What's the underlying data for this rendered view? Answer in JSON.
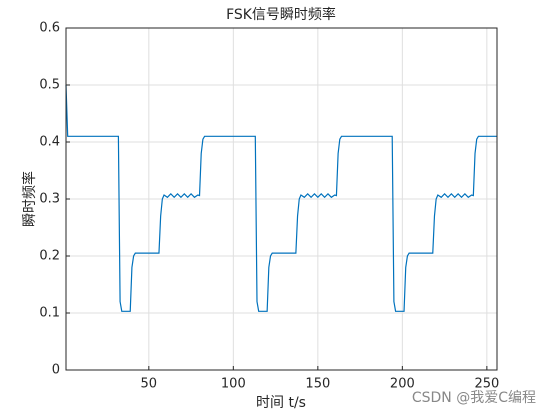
{
  "chart_data": {
    "type": "line",
    "title": "FSK信号瞬时频率",
    "x_label": "时间 t/s",
    "y_label": "瞬时频率",
    "watermark": "CSDN @我爱C编程",
    "x": [
      1,
      2,
      32,
      33,
      34,
      39,
      40,
      41,
      42,
      56,
      57,
      58,
      59,
      61,
      63,
      65,
      67,
      69,
      71,
      73,
      75,
      77,
      79,
      80,
      81,
      82,
      83,
      113,
      114,
      115,
      120,
      121,
      122,
      123,
      137,
      138,
      139,
      140,
      142,
      144,
      146,
      148,
      150,
      152,
      154,
      156,
      158,
      160,
      161,
      162,
      163,
      164,
      194,
      195,
      196,
      201,
      202,
      203,
      204,
      218,
      219,
      220,
      221,
      223,
      225,
      227,
      229,
      231,
      233,
      235,
      237,
      239,
      241,
      242,
      243,
      244,
      245,
      256
    ],
    "series": [
      {
        "color": "#0072bd",
        "values": [
          0.5,
          0.41,
          0.41,
          0.12,
          0.103,
          0.103,
          0.18,
          0.2,
          0.205,
          0.205,
          0.27,
          0.3,
          0.307,
          0.303,
          0.309,
          0.303,
          0.309,
          0.303,
          0.309,
          0.303,
          0.309,
          0.303,
          0.307,
          0.306,
          0.38,
          0.405,
          0.41,
          0.41,
          0.12,
          0.103,
          0.103,
          0.18,
          0.2,
          0.205,
          0.205,
          0.27,
          0.3,
          0.307,
          0.303,
          0.309,
          0.303,
          0.309,
          0.303,
          0.309,
          0.303,
          0.309,
          0.303,
          0.307,
          0.306,
          0.38,
          0.405,
          0.41,
          0.41,
          0.12,
          0.103,
          0.103,
          0.18,
          0.2,
          0.205,
          0.205,
          0.27,
          0.3,
          0.307,
          0.303,
          0.309,
          0.303,
          0.309,
          0.303,
          0.309,
          0.303,
          0.309,
          0.303,
          0.307,
          0.306,
          0.38,
          0.405,
          0.41,
          0.41
        ]
      }
    ],
    "xlim": [
      1,
      256
    ],
    "xticks": [
      50,
      100,
      150,
      200,
      250
    ],
    "ylim": [
      0,
      0.6
    ],
    "yticks": [
      0,
      0.1,
      0.2,
      0.3,
      0.4,
      0.5,
      0.6
    ],
    "grid": true
  }
}
